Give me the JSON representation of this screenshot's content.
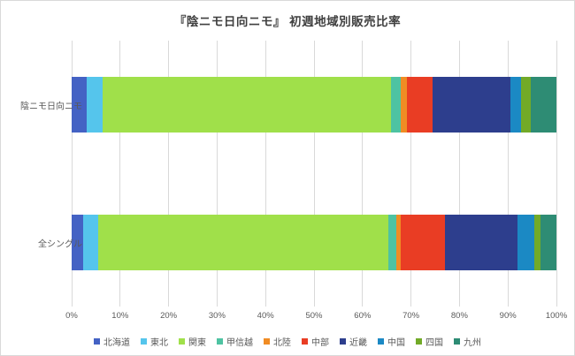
{
  "title": "『陰ニモ日向ニモ』 初週地域別販売比率",
  "chart_data": {
    "type": "bar",
    "orientation": "horizontal",
    "stacked": true,
    "unit": "%",
    "title": "『陰ニモ日向ニモ』 初週地域別販売比率",
    "categories": [
      "陰ニモ日向ニモ",
      "全シングル"
    ],
    "series": [
      {
        "name": "北海道",
        "color": "#4462C4",
        "values": [
          3.1,
          2.4
        ]
      },
      {
        "name": "東北",
        "color": "#55C5EC",
        "values": [
          3.3,
          3.1
        ]
      },
      {
        "name": "関東",
        "color": "#A0E04A",
        "values": [
          59.5,
          59.9
        ]
      },
      {
        "name": "甲信越",
        "color": "#4EC3A2",
        "values": [
          2.0,
          1.6
        ]
      },
      {
        "name": "北陸",
        "color": "#F08C24",
        "values": [
          1.2,
          0.9
        ]
      },
      {
        "name": "中部",
        "color": "#E93D24",
        "values": [
          5.3,
          9.1
        ]
      },
      {
        "name": "近畿",
        "color": "#2D3E8D",
        "values": [
          16.1,
          15.0
        ]
      },
      {
        "name": "中国",
        "color": "#1B89C4",
        "values": [
          2.2,
          3.4
        ]
      },
      {
        "name": "四国",
        "color": "#72AA28",
        "values": [
          2.0,
          1.3
        ]
      },
      {
        "name": "九州",
        "color": "#2E8C74",
        "values": [
          5.3,
          3.3
        ]
      }
    ],
    "x_axis": {
      "min": 0,
      "max": 100,
      "tick_labels": [
        "0%",
        "10%",
        "20%",
        "30%",
        "40%",
        "50%",
        "60%",
        "70%",
        "80%",
        "90%",
        "100%"
      ]
    },
    "grid": true,
    "legend_position": "bottom"
  },
  "colors": {
    "background": "#FFFFFF",
    "border": "#D9D9D9",
    "gridline": "#D9D9D9",
    "axis_text": "#595959",
    "title_text": "#404040"
  }
}
